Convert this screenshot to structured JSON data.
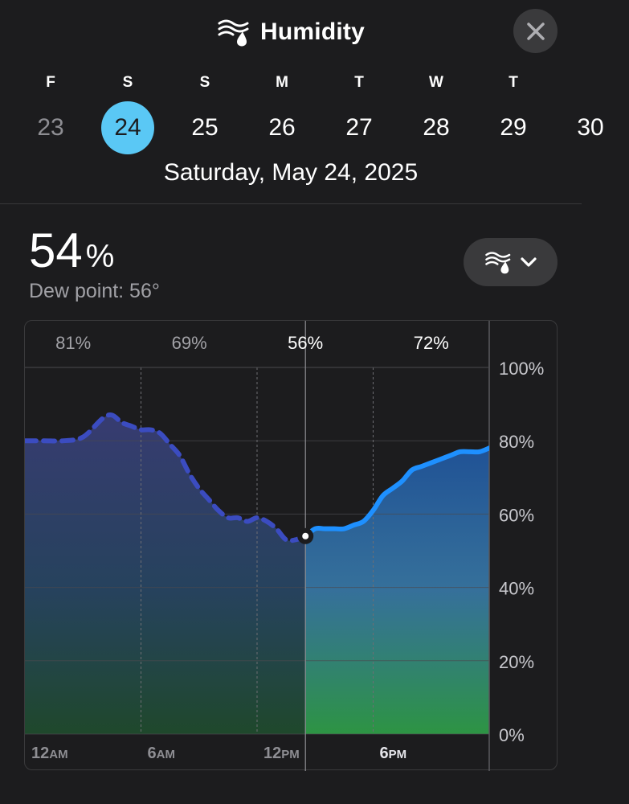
{
  "header": {
    "title": "Humidity",
    "title_icon": "humidity-icon",
    "close_icon": "close-icon"
  },
  "days": [
    {
      "letter": "F",
      "number": "23",
      "state": "past"
    },
    {
      "letter": "S",
      "number": "24",
      "state": "selected"
    },
    {
      "letter": "S",
      "number": "25",
      "state": "future"
    },
    {
      "letter": "M",
      "number": "26",
      "state": "future"
    },
    {
      "letter": "T",
      "number": "27",
      "state": "future"
    },
    {
      "letter": "W",
      "number": "28",
      "state": "future"
    },
    {
      "letter": "T",
      "number": "29",
      "state": "future"
    },
    {
      "letter": "",
      "number": "30",
      "state": "future"
    }
  ],
  "selected_date": "Saturday, May 24, 2025",
  "current": {
    "value": "54",
    "unit": "%",
    "dew_point": "Dew point: 56°"
  },
  "picker": {
    "icon": "humidity-icon",
    "chevron": "chevron-down-icon"
  },
  "colors": {
    "accent": "#5ac8f5",
    "line_future": "#1e90ff",
    "line_past": "#3b4cc0",
    "background": "#1c1c1e"
  },
  "chart_data": {
    "type": "area",
    "x_ticks": [
      "12AM",
      "6AM",
      "12PM",
      "6PM"
    ],
    "y_ticks": [
      "100%",
      "80%",
      "60%",
      "40%",
      "20%",
      "0%"
    ],
    "ylim": [
      0,
      100
    ],
    "xlim": [
      0,
      24
    ],
    "segment_labels": [
      "81%",
      "69%",
      "56%",
      "72%"
    ],
    "current_hour": 14.5,
    "x": [
      0,
      1,
      2,
      3,
      4,
      4.5,
      5,
      5.5,
      6,
      6.5,
      7,
      7.5,
      8,
      8.5,
      9,
      9.5,
      10,
      10.5,
      11,
      11.5,
      12,
      12.5,
      13,
      13.5,
      14,
      14.5,
      15,
      15.5,
      16,
      16.5,
      17,
      17.5,
      18,
      18.5,
      19,
      19.5,
      20,
      20.5,
      21,
      21.5,
      22,
      22.5,
      23,
      23.5,
      24
    ],
    "values": [
      80,
      80,
      80,
      81,
      86,
      87,
      85,
      84,
      83,
      83,
      82,
      79,
      76,
      71,
      67,
      64,
      61,
      59,
      59,
      58,
      59,
      58,
      56,
      53,
      53,
      54,
      56,
      56,
      56,
      56,
      57,
      58,
      61,
      65,
      67,
      69,
      72,
      73,
      74,
      75,
      76,
      77,
      77,
      77,
      78
    ],
    "grid": true
  }
}
